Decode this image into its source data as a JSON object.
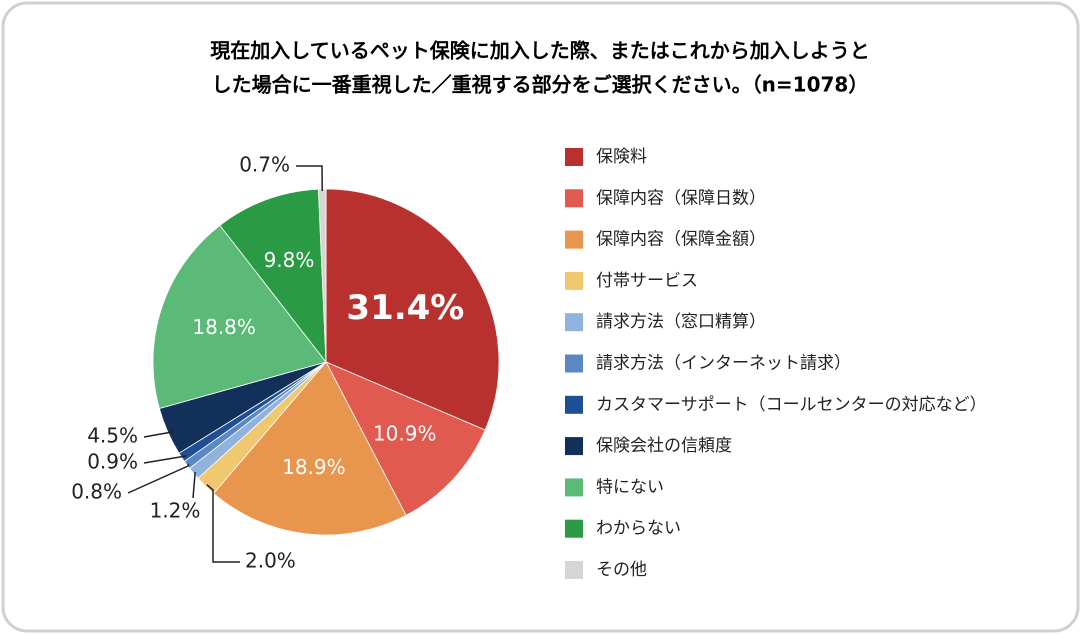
{
  "chart_data": {
    "type": "pie",
    "title": [
      "現在加入しているペット保険に加入した際、またはこれから加入しようと",
      "した場合に一番重視した／重視する部分をご選択ください。（n=1078）"
    ],
    "categories": [
      "保険料",
      "保障内容（保障日数）",
      "保障内容（保障金額）",
      "付帯サービス",
      "請求方法（窓口精算）",
      "請求方法（インターネット請求）",
      "カスタマーサポート（コールセンターの対応など）",
      "保険会社の信頼度",
      "特にない",
      "わからない",
      "その他"
    ],
    "values": [
      31.4,
      10.9,
      18.9,
      2.0,
      1.2,
      0.8,
      0.9,
      4.5,
      18.8,
      9.8,
      0.7
    ],
    "value_labels": [
      "31.4%",
      "10.9%",
      "18.9%",
      "2.0%",
      "1.2%",
      "0.8%",
      "0.9%",
      "4.5%",
      "18.8%",
      "9.8%",
      "0.7%"
    ],
    "colors": [
      "#b8312f",
      "#e05a4f",
      "#e8964e",
      "#efc870",
      "#8fb3dc",
      "#5b87c4",
      "#1e4f94",
      "#12305a",
      "#5bba78",
      "#2a9a44",
      "#d5d5d5"
    ],
    "legend": "right"
  }
}
